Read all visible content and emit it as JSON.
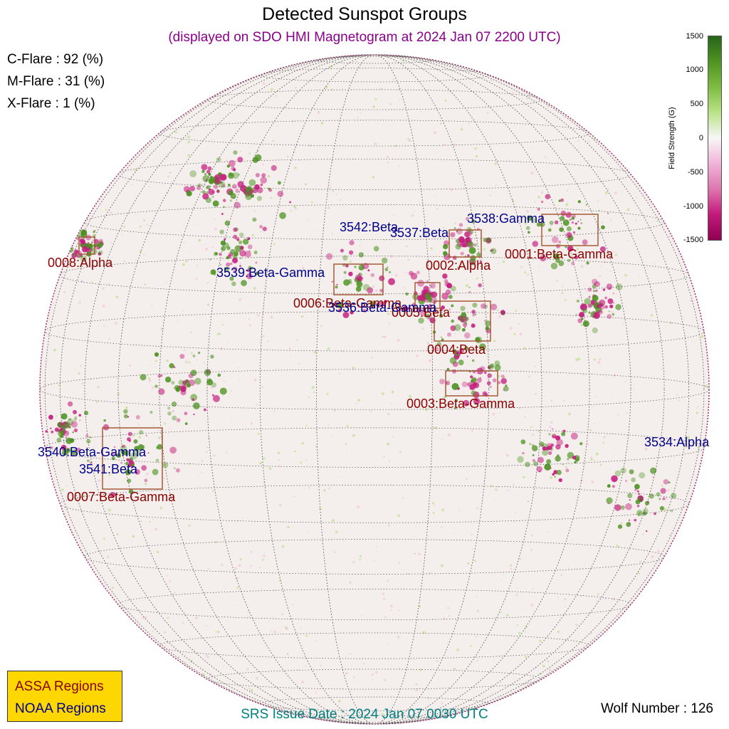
{
  "title": "Detected Sunspot Groups",
  "subtitle": "(displayed on SDO HMI Magnetogram at 2024 Jan 07 2200 UTC)",
  "flares": {
    "c": "C-Flare : 92 (%)",
    "m": "M-Flare : 31 (%)",
    "x": "X-Flare :  1 (%)"
  },
  "colorbar": {
    "label": "Field Strength (G)",
    "ticks": [
      "1500",
      "1000",
      "500",
      "0",
      "-500",
      "-1000",
      "-1500"
    ],
    "positive_color": "#4d9221",
    "negative_color": "#c51b7d"
  },
  "assa_regions": [
    {
      "label": "0001:Beta-Gamma"
    },
    {
      "label": "0002:Alpha"
    },
    {
      "label": "0003:Beta-Gamma"
    },
    {
      "label": "0004:Beta"
    },
    {
      "label": "0005:Beta"
    },
    {
      "label": "0006:Beta-Gamma"
    },
    {
      "label": "0007:Beta-Gamma"
    },
    {
      "label": "0008:Alpha"
    }
  ],
  "noaa_regions": [
    {
      "label": "3534:Alpha"
    },
    {
      "label": "3536:Beta-Gamma"
    },
    {
      "label": "3537:Beta"
    },
    {
      "label": "3538:Gamma"
    },
    {
      "label": "3539:Beta-Gamma"
    },
    {
      "label": "3540:Beta-Gamma"
    },
    {
      "label": "3541:Beta"
    },
    {
      "label": "3542:Beta"
    }
  ],
  "legend": {
    "assa": "ASSA Regions",
    "noaa": "NOAA Regions",
    "assa_color": "#8b0000",
    "noaa_color": "#00008b",
    "bg_color": "#ffd700"
  },
  "srs_issue": "SRS Issue Date : 2024 Jan 07 0030 UTC",
  "wolf_number": "Wolf Number : 126"
}
